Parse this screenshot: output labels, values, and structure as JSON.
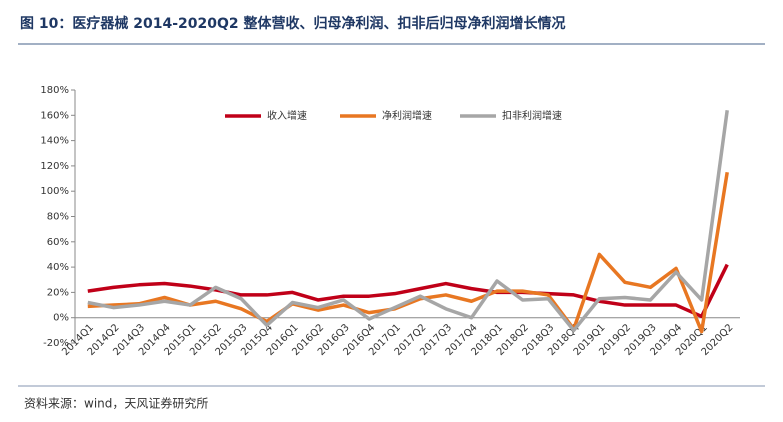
{
  "chart_data": {
    "type": "line",
    "title": "图 10：医疗器械 2014-2020Q2 整体营收、归母净利润、扣非后归母净利润增长情况",
    "source": "资料来源：wind，天风证券研究所",
    "categories": [
      "2014Q1",
      "2014Q2",
      "2014Q3",
      "2014Q4",
      "2015Q1",
      "2015Q2",
      "2015Q3",
      "2015Q4",
      "2016Q1",
      "2016Q2",
      "2016Q3",
      "2016Q4",
      "2017Q1",
      "2017Q2",
      "2017Q3",
      "2017Q4",
      "2018Q1",
      "2018Q2",
      "2018Q3",
      "2018Q4",
      "2019Q1",
      "2019Q2",
      "2019Q3",
      "2019Q4",
      "2020Q1",
      "2020Q2"
    ],
    "series": [
      {
        "name": "收入增速",
        "color": "#c00018",
        "values": [
          21,
          24,
          26,
          27,
          25,
          22,
          18,
          18,
          20,
          14,
          17,
          17,
          19,
          23,
          27,
          23,
          20,
          20,
          19,
          18,
          13,
          10,
          10,
          10,
          1,
          42
        ]
      },
      {
        "name": "净利润增速",
        "color": "#e87722",
        "values": [
          9,
          10,
          11,
          16,
          10,
          13,
          7,
          -3,
          11,
          6,
          10,
          4,
          7,
          15,
          18,
          13,
          21,
          21,
          18,
          -9,
          50,
          28,
          24,
          39,
          -11,
          115
        ]
      },
      {
        "name": "扣非利润增速",
        "color": "#a6a6a6",
        "values": [
          12,
          8,
          10,
          13,
          10,
          24,
          15,
          -6,
          12,
          8,
          14,
          -1,
          8,
          17,
          7,
          0,
          29,
          14,
          15,
          -10,
          15,
          16,
          14,
          36,
          14,
          164
        ]
      }
    ],
    "ylim": [
      -20,
      180
    ],
    "yticks": [
      {
        "value": -20,
        "label": "-20%"
      },
      {
        "value": 0,
        "label": "0%"
      },
      {
        "value": 20,
        "label": "20%"
      },
      {
        "value": 40,
        "label": "40%"
      },
      {
        "value": 60,
        "label": "60%"
      },
      {
        "value": 80,
        "label": "80%"
      },
      {
        "value": 100,
        "label": "100%"
      },
      {
        "value": 120,
        "label": "120%"
      },
      {
        "value": 140,
        "label": "140%"
      },
      {
        "value": 160,
        "label": "160%"
      },
      {
        "value": 180,
        "label": "180%"
      }
    ],
    "legend": "top"
  }
}
